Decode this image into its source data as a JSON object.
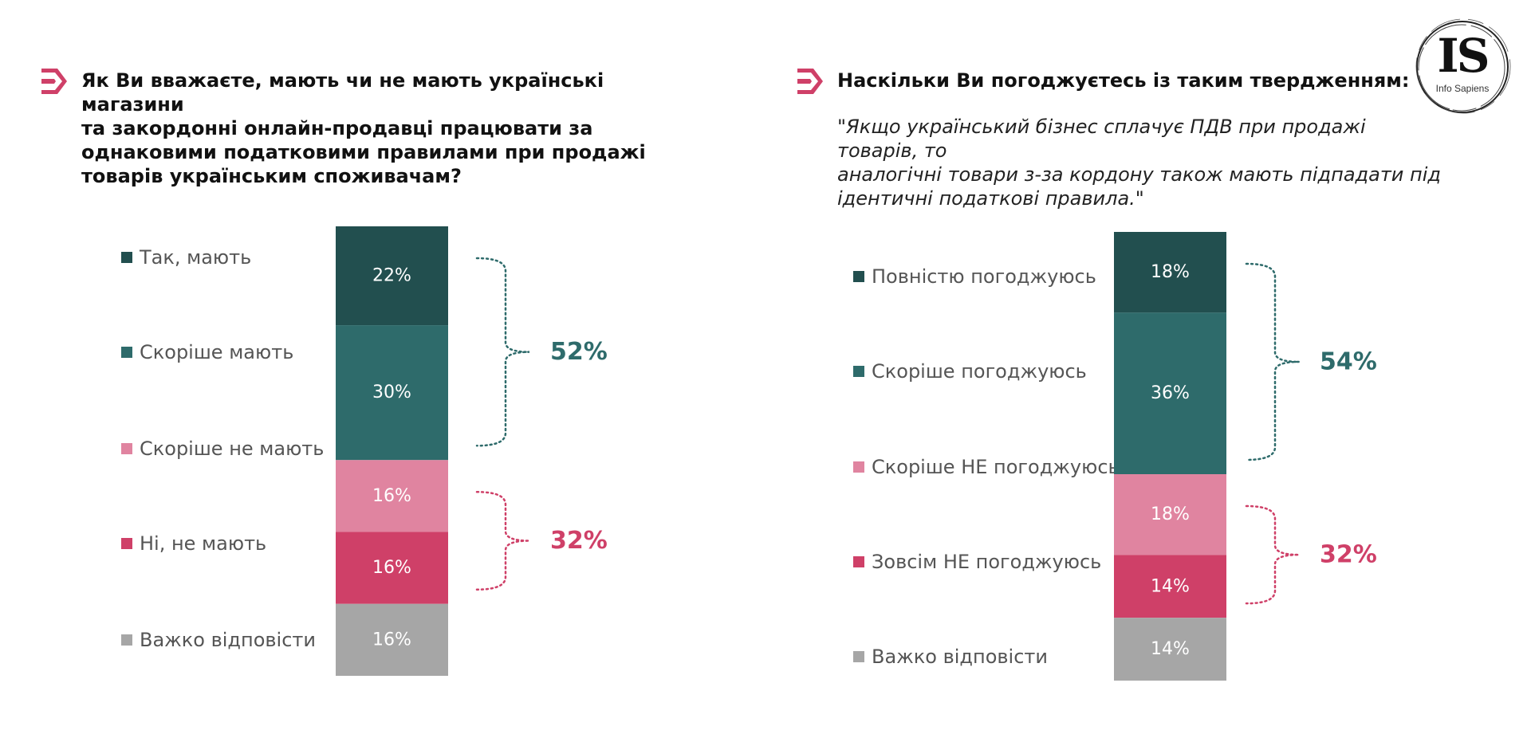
{
  "colors": {
    "dark_teal": "#224f4f",
    "teal": "#2e6b6b",
    "light_pink": "#e084a0",
    "pink": "#cf4068",
    "gray": "#a6a6a6",
    "accent_pink": "#cf4068",
    "brace_teal": "#2e6b6b",
    "brace_pink": "#cf4068"
  },
  "logo": {
    "mark": "IS",
    "name": "Info Sapiens"
  },
  "chart_data": [
    {
      "type": "bar",
      "stacked": true,
      "question": "Як Ви вважаєте, мають чи не мають українські магазини та закордонні онлайн-продавці працювати за однаковими податковими правилами при продажі товарів українським споживачам?",
      "question_lines": [
        "Як Ви вважаєте, мають чи не мають українські магазини",
        "та закордонні онлайн-продавці працювати за",
        "однаковими податковими правилами при продажі",
        "товарів українським споживачам?"
      ],
      "quote_lines": [],
      "categories": [
        "Так, мають",
        "Скоріше мають",
        "Скоріше не мають",
        "Ні, не мають",
        "Важко відповісти"
      ],
      "values": [
        22,
        30,
        16,
        16,
        16
      ],
      "value_labels": [
        "22%",
        "30%",
        "16%",
        "16%",
        "16%"
      ],
      "series_colors": [
        "#224f4f",
        "#2e6b6b",
        "#e084a0",
        "#cf4068",
        "#a6a6a6"
      ],
      "label_colors": [
        "#ffffff",
        "#ffffff",
        "#ffffff",
        "#ffffff",
        "#ffffff"
      ],
      "groups": [
        {
          "label": "52%",
          "value": 52,
          "from": 0,
          "to": 1,
          "color": "#2e6b6b"
        },
        {
          "label": "32%",
          "value": 32,
          "from": 2,
          "to": 3,
          "color": "#cf4068"
        }
      ],
      "legend": "left"
    },
    {
      "type": "bar",
      "stacked": true,
      "question": "Наскільки Ви погоджуєтесь із таким твердженням:",
      "question_lines": [
        "Наскільки Ви погоджуєтесь із таким твердженням:"
      ],
      "quote_lines": [
        "\"Якщо український бізнес сплачує ПДВ при продажі товарів, то",
        "аналогічні товари з-за кордону також мають підпадати під",
        "ідентичні податкові правила.\""
      ],
      "categories": [
        "Повністю погоджуюсь",
        "Скоріше погоджуюсь",
        "Скоріше НЕ погоджуюсь",
        "Зовсім НЕ погоджуюсь",
        "Важко відповісти"
      ],
      "values": [
        18,
        36,
        18,
        14,
        14
      ],
      "value_labels": [
        "18%",
        "36%",
        "18%",
        "14%",
        "14%"
      ],
      "series_colors": [
        "#224f4f",
        "#2e6b6b",
        "#e084a0",
        "#cf4068",
        "#a6a6a6"
      ],
      "label_colors": [
        "#ffffff",
        "#ffffff",
        "#ffffff",
        "#ffffff",
        "#ffffff"
      ],
      "groups": [
        {
          "label": "54%",
          "value": 54,
          "from": 0,
          "to": 1,
          "color": "#2e6b6b"
        },
        {
          "label": "32%",
          "value": 32,
          "from": 2,
          "to": 3,
          "color": "#cf4068"
        }
      ],
      "legend": "left"
    }
  ]
}
